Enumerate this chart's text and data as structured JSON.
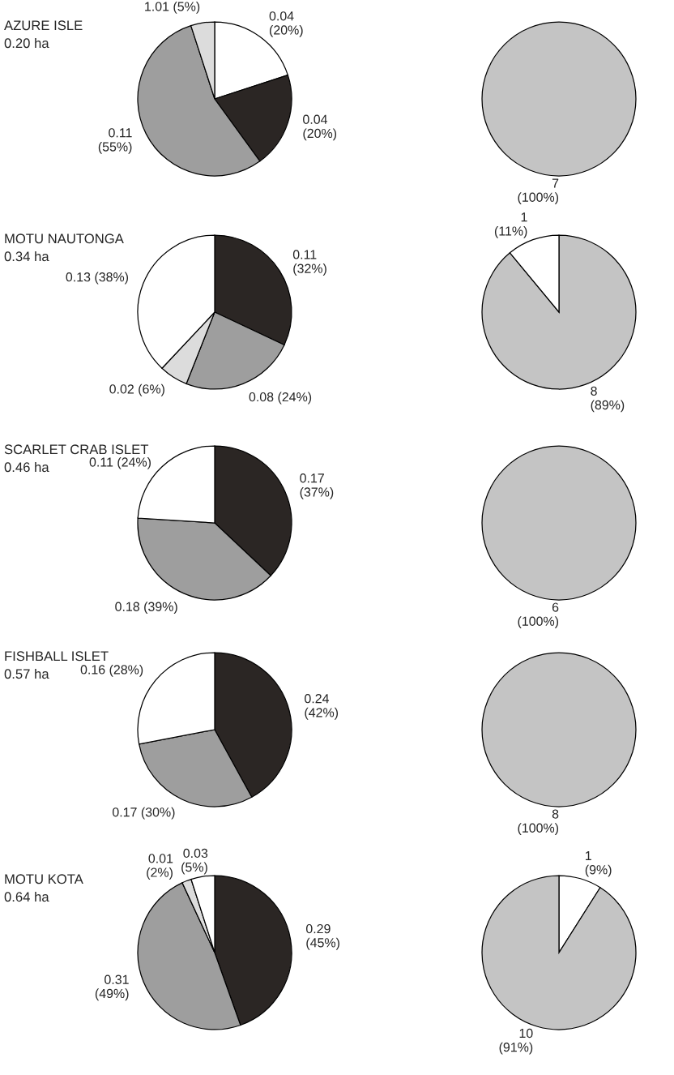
{
  "chart_data": [
    {
      "type": "pie",
      "title": "AZURE ISLE",
      "subtitle": "0.20 ha",
      "categories": [
        null,
        null,
        null,
        null
      ],
      "values": [
        20,
        20,
        55,
        5
      ],
      "colors": [
        "#ffffff",
        "#2b2624",
        "#9e9e9e",
        "#dcdcdc"
      ],
      "value_labels": [
        "0.04\n(20%)",
        "0.04\n(20%)",
        "0.11\n(55%)",
        "1.01 (5%)"
      ]
    },
    {
      "type": "pie",
      "categories": [
        null
      ],
      "values": [
        100
      ],
      "colors": [
        "#c4c4c4"
      ],
      "value_labels": [
        "7\n(100%)"
      ]
    },
    {
      "type": "pie",
      "title": "MOTU NAUTONGA",
      "subtitle": "0.34 ha",
      "categories": [
        null,
        null,
        null,
        null
      ],
      "values": [
        32,
        24,
        6,
        38
      ],
      "colors": [
        "#2b2624",
        "#9e9e9e",
        "#dcdcdc",
        "#ffffff"
      ],
      "value_labels": [
        "0.11\n(32%)",
        "0.08 (24%)",
        "0.02 (6%)",
        "0.13 (38%)"
      ]
    },
    {
      "type": "pie",
      "categories": [
        null,
        null
      ],
      "values": [
        89,
        11
      ],
      "colors": [
        "#c4c4c4",
        "#ffffff"
      ],
      "value_labels": [
        "8\n(89%)",
        "1\n(11%)"
      ]
    },
    {
      "type": "pie",
      "title": "SCARLET CRAB ISLET",
      "subtitle": "0.46 ha",
      "categories": [
        null,
        null,
        null
      ],
      "values": [
        37,
        39,
        24
      ],
      "colors": [
        "#2b2624",
        "#9e9e9e",
        "#ffffff"
      ],
      "value_labels": [
        "0.17\n(37%)",
        "0.18 (39%)",
        "0.11 (24%)"
      ]
    },
    {
      "type": "pie",
      "categories": [
        null
      ],
      "values": [
        100
      ],
      "colors": [
        "#c4c4c4"
      ],
      "value_labels": [
        "6\n(100%)"
      ]
    },
    {
      "type": "pie",
      "title": "FISHBALL ISLET",
      "subtitle": "0.57 ha",
      "categories": [
        null,
        null,
        null
      ],
      "values": [
        42,
        30,
        28
      ],
      "colors": [
        "#2b2624",
        "#9e9e9e",
        "#ffffff"
      ],
      "value_labels": [
        "0.24\n(42%)",
        "0.17 (30%)",
        "0.16 (28%)"
      ]
    },
    {
      "type": "pie",
      "categories": [
        null
      ],
      "values": [
        100
      ],
      "colors": [
        "#c4c4c4"
      ],
      "value_labels": [
        "8\n(100%)"
      ]
    },
    {
      "type": "pie",
      "title": "MOTU KOTA",
      "subtitle": "0.64 ha",
      "categories": [
        null,
        null,
        null,
        null
      ],
      "values": [
        45,
        49,
        2,
        5
      ],
      "colors": [
        "#2b2624",
        "#9e9e9e",
        "#dcdcdc",
        "#ffffff"
      ],
      "value_labels": [
        "0.29\n(45%)",
        "0.31\n(49%)",
        "0.01\n(2%)",
        "0.03\n(5%)"
      ]
    },
    {
      "type": "pie",
      "categories": [
        null,
        null
      ],
      "values": [
        9,
        91
      ],
      "colors": [
        "#ffffff",
        "#c4c4c4"
      ],
      "value_labels": [
        "1\n(9%)",
        "10\n(91%)"
      ]
    }
  ]
}
